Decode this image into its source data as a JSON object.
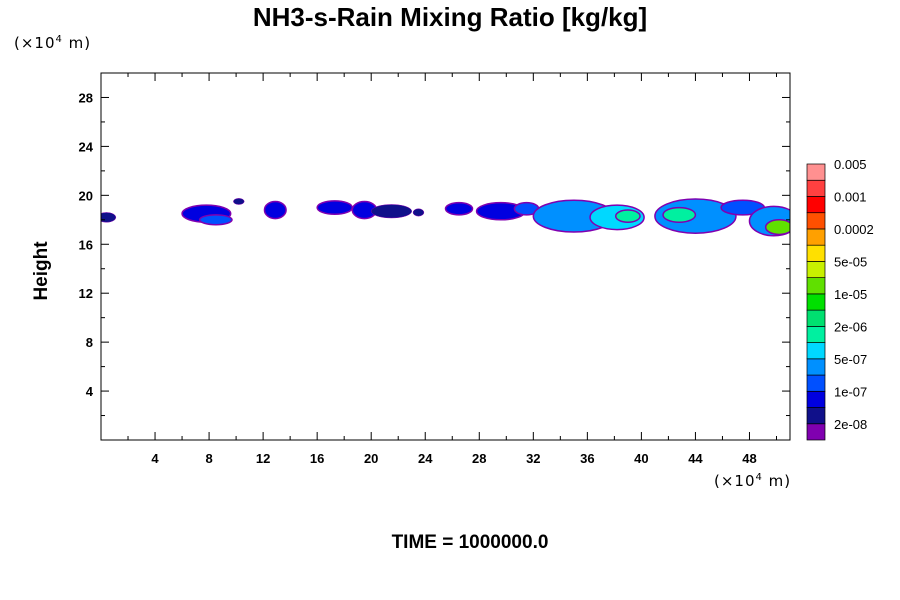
{
  "chart_data": {
    "type": "heatmap",
    "title": "NH3-s-Rain Mixing Ratio [kg/kg]",
    "ylabel": "Height",
    "x_unit": "(×10⁴ m)",
    "y_unit": "(×10⁴ m)",
    "xlim": [
      0,
      51
    ],
    "ylim": [
      0,
      30
    ],
    "x_ticks": [
      4,
      8,
      12,
      16,
      20,
      24,
      28,
      32,
      36,
      40,
      44,
      48
    ],
    "y_ticks": [
      4,
      8,
      12,
      16,
      20,
      24,
      28
    ],
    "colorbar": {
      "colors": [
        "#8000b0",
        "#10108a",
        "#0000e0",
        "#0050ff",
        "#0090ff",
        "#00d8ff",
        "#00f0a0",
        "#00e070",
        "#00e000",
        "#60e000",
        "#c8f000",
        "#ffe000",
        "#ffa000",
        "#ff5000",
        "#ff0000",
        "#ff4040",
        "#ff9090"
      ],
      "labels": [
        "2e-08",
        "1e-07",
        "5e-07",
        "2e-06",
        "1e-05",
        "5e-05",
        "0.0002",
        "0.001",
        "0.005"
      ]
    },
    "regions": [
      {
        "x": 0.4,
        "y": 18.2,
        "rx": 0.7,
        "ry": 0.4,
        "level": 1
      },
      {
        "x": 7.8,
        "y": 18.5,
        "rx": 1.8,
        "ry": 0.7,
        "level": 2
      },
      {
        "x": 8.5,
        "y": 18.0,
        "rx": 1.2,
        "ry": 0.4,
        "level": 3
      },
      {
        "x": 10.2,
        "y": 19.5,
        "rx": 0.4,
        "ry": 0.25,
        "level": 1
      },
      {
        "x": 12.9,
        "y": 18.8,
        "rx": 0.8,
        "ry": 0.7,
        "level": 2
      },
      {
        "x": 17.3,
        "y": 19.0,
        "rx": 1.3,
        "ry": 0.55,
        "level": 2
      },
      {
        "x": 19.5,
        "y": 18.8,
        "rx": 0.9,
        "ry": 0.7,
        "level": 2
      },
      {
        "x": 21.5,
        "y": 18.7,
        "rx": 1.5,
        "ry": 0.55,
        "level": 1
      },
      {
        "x": 23.5,
        "y": 18.6,
        "rx": 0.4,
        "ry": 0.3,
        "level": 1
      },
      {
        "x": 26.5,
        "y": 18.9,
        "rx": 1.0,
        "ry": 0.5,
        "level": 2
      },
      {
        "x": 29.6,
        "y": 18.7,
        "rx": 1.8,
        "ry": 0.7,
        "level": 2
      },
      {
        "x": 31.5,
        "y": 18.9,
        "rx": 0.9,
        "ry": 0.5,
        "level": 3
      },
      {
        "x": 35.0,
        "y": 18.3,
        "rx": 3.0,
        "ry": 1.3,
        "level": 4
      },
      {
        "x": 38.2,
        "y": 18.2,
        "rx": 2.0,
        "ry": 1.0,
        "level": 5
      },
      {
        "x": 39.0,
        "y": 18.3,
        "rx": 0.9,
        "ry": 0.5,
        "level": 6
      },
      {
        "x": 44.0,
        "y": 18.3,
        "rx": 3.0,
        "ry": 1.4,
        "level": 4
      },
      {
        "x": 42.8,
        "y": 18.4,
        "rx": 1.2,
        "ry": 0.6,
        "level": 6
      },
      {
        "x": 47.5,
        "y": 19.0,
        "rx": 1.6,
        "ry": 0.6,
        "level": 3
      },
      {
        "x": 49.8,
        "y": 17.9,
        "rx": 1.8,
        "ry": 1.2,
        "level": 4
      },
      {
        "x": 50.2,
        "y": 17.4,
        "rx": 1.0,
        "ry": 0.6,
        "level": 9
      }
    ]
  },
  "footer": {
    "time_label": "TIME = 1000000.0"
  }
}
